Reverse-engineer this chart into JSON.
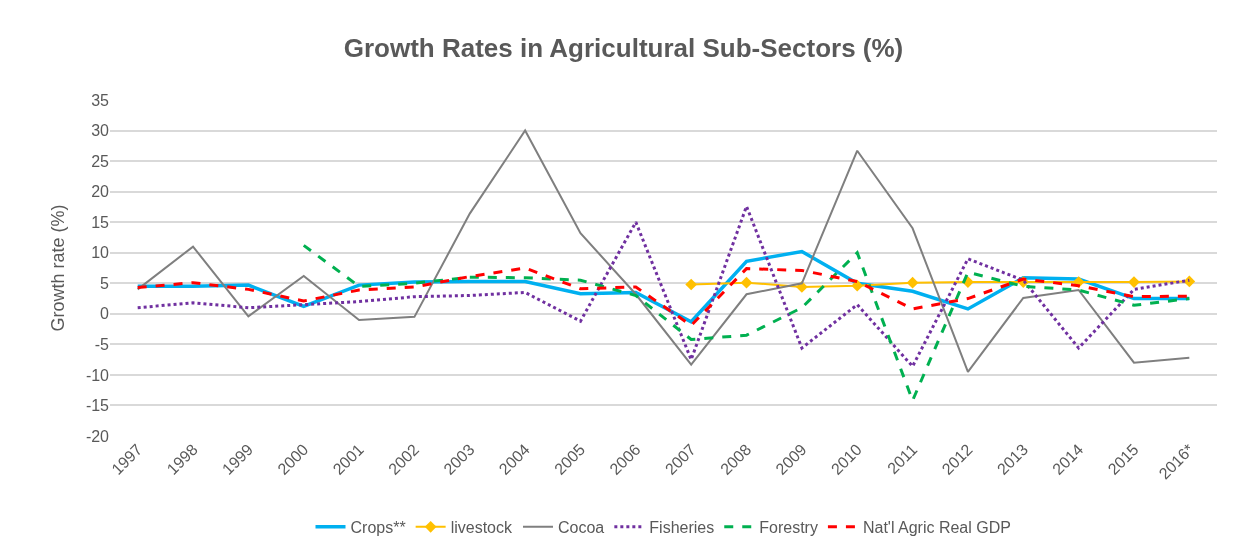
{
  "chart_data": {
    "type": "line",
    "title": "Growth Rates in Agricultural Sub-Sectors (%)",
    "ylabel": "Growth rate (%)",
    "categories": [
      "1997",
      "1998",
      "1999",
      "2000",
      "2001",
      "2002",
      "2003",
      "2004",
      "2005",
      "2006",
      "2007",
      "2008",
      "2009",
      "2010",
      "2011",
      "2012",
      "2013",
      "2014",
      "2015",
      "2016*"
    ],
    "ylim": [
      -20,
      35
    ],
    "yticks": [
      -20,
      -15,
      -10,
      -5,
      0,
      5,
      10,
      15,
      20,
      25,
      30,
      35
    ],
    "grid": "y",
    "legend": "bottom",
    "series": [
      {
        "name": "Crops**",
        "color": "#00b0f0",
        "line_style": "solid",
        "values": [
          4.5,
          4.5,
          4.7,
          1.2,
          4.7,
          5.2,
          5.3,
          5.3,
          3.3,
          3.5,
          -1.3,
          8.6,
          10.2,
          5.0,
          3.7,
          0.8,
          5.9,
          5.7,
          2.5,
          2.5
        ]
      },
      {
        "name": "livestock",
        "color": "#ffc000",
        "line_style": "solid",
        "marker": "diamond",
        "values": [
          null,
          null,
          null,
          null,
          null,
          null,
          null,
          null,
          null,
          null,
          4.8,
          5.1,
          4.4,
          4.6,
          5.1,
          5.2,
          5.2,
          5.2,
          5.2,
          5.3
        ]
      },
      {
        "name": "Cocoa",
        "color": "#7f7f7f",
        "line_style": "solid",
        "values": [
          4.0,
          11.0,
          -0.4,
          6.2,
          -1.0,
          -0.5,
          16.4,
          30.0,
          13.2,
          3.2,
          -8.3,
          3.2,
          5.0,
          26.7,
          14.0,
          -9.5,
          2.6,
          3.9,
          -8.0,
          -7.2
        ]
      },
      {
        "name": "Fisheries",
        "color": "#7030a0",
        "line_style": "dotted",
        "values": [
          1.0,
          1.8,
          1.0,
          1.5,
          2.0,
          2.8,
          3.0,
          3.5,
          -1.2,
          15.0,
          -7.5,
          17.6,
          -5.6,
          1.5,
          -8.6,
          9.0,
          5.5,
          -5.6,
          4.0,
          5.5
        ]
      },
      {
        "name": "Forestry",
        "color": "#00b050",
        "line_style": "dashed",
        "values": [
          null,
          null,
          null,
          11.2,
          4.5,
          5.0,
          6.0,
          5.9,
          5.5,
          3.0,
          -4.2,
          -3.5,
          1.0,
          10.0,
          -14.2,
          6.8,
          4.5,
          3.9,
          1.4,
          2.5
        ]
      },
      {
        "name": "Nat'l Agric Real GDP",
        "color": "#ff0000",
        "line_style": "dashed",
        "values": [
          4.3,
          5.1,
          4.0,
          2.1,
          3.9,
          4.4,
          6.1,
          7.5,
          4.1,
          4.4,
          -1.9,
          7.4,
          7.1,
          5.3,
          0.8,
          2.5,
          5.7,
          4.6,
          2.8,
          2.9
        ]
      }
    ]
  }
}
